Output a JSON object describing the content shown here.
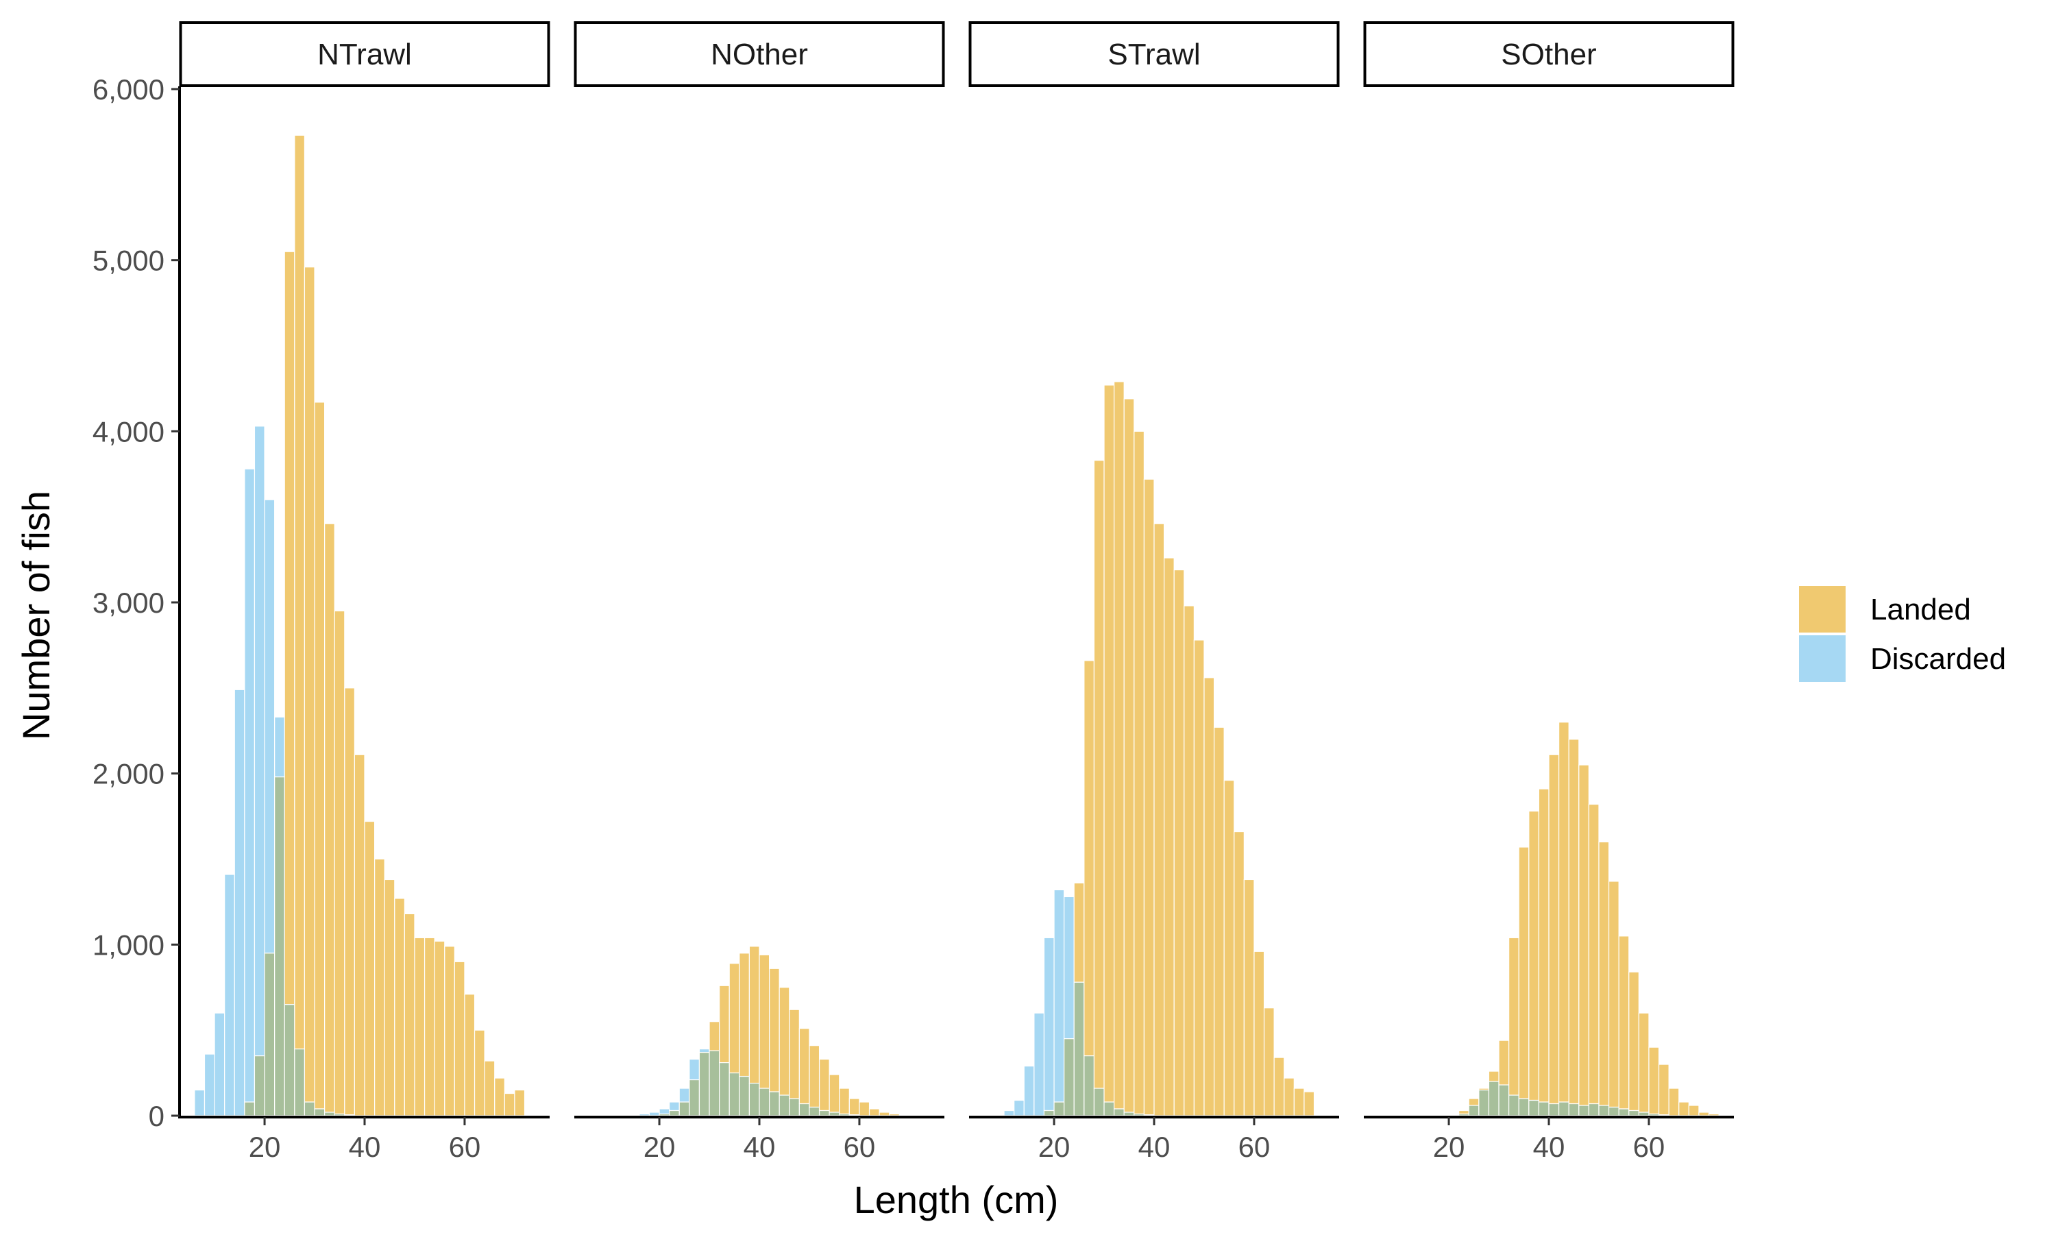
{
  "chart_data": {
    "type": "bar",
    "subtype": "overlapping histogram, faceted",
    "xlabel": "Length (cm)",
    "ylabel": "Number of fish",
    "x_ticks": [
      20,
      40,
      60
    ],
    "y_ticks": [
      0,
      1000,
      2000,
      3000,
      4000,
      5000,
      6000
    ],
    "y_tick_labels": [
      "0",
      "1,000",
      "2,000",
      "3,000",
      "4,000",
      "5,000",
      "6,000"
    ],
    "xlim": [
      3,
      77
    ],
    "ylim": [
      0,
      6000
    ],
    "bin_width": 2,
    "bin_starts": [
      6,
      8,
      10,
      12,
      14,
      16,
      18,
      20,
      22,
      24,
      26,
      28,
      30,
      32,
      34,
      36,
      38,
      40,
      42,
      44,
      46,
      48,
      50,
      52,
      54,
      56,
      58,
      60,
      62,
      64,
      66,
      68,
      70,
      72,
      74
    ],
    "grid": false,
    "legend_position": "right",
    "colors": {
      "Landed": "#F0C970",
      "Discarded": "#A6D8F3",
      "overlap": "#A7BF9B",
      "axis": "#000000",
      "strip_border": "#000000",
      "bar_edge": "#ffffff"
    },
    "legend": [
      {
        "name": "Landed",
        "color": "#F0C970"
      },
      {
        "name": "Discarded",
        "color": "#A6D8F3"
      }
    ],
    "facets": [
      {
        "name": "NTrawl",
        "series": [
          {
            "name": "Landed",
            "values": [
              0,
              0,
              0,
              0,
              0,
              80,
              350,
              950,
              1980,
              5050,
              5730,
              4960,
              4170,
              3460,
              2950,
              2500,
              2110,
              1720,
              1500,
              1380,
              1270,
              1180,
              1040,
              1040,
              1020,
              990,
              900,
              710,
              500,
              320,
              220,
              130,
              150,
              0,
              0
            ]
          },
          {
            "name": "Discarded",
            "values": [
              150,
              360,
              600,
              1410,
              2490,
              3780,
              4030,
              3600,
              2330,
              650,
              390,
              80,
              40,
              20,
              10,
              5,
              0,
              0,
              0,
              0,
              0,
              0,
              0,
              0,
              0,
              0,
              0,
              0,
              0,
              0,
              0,
              0,
              0,
              0,
              0
            ]
          }
        ]
      },
      {
        "name": "NOther",
        "series": [
          {
            "name": "Landed",
            "values": [
              0,
              0,
              0,
              0,
              0,
              0,
              0,
              10,
              30,
              80,
              210,
              370,
              550,
              760,
              890,
              950,
              990,
              940,
              860,
              750,
              620,
              510,
              410,
              330,
              240,
              160,
              100,
              80,
              40,
              20,
              10,
              0,
              0,
              0,
              0
            ]
          },
          {
            "name": "Discarded",
            "values": [
              0,
              0,
              0,
              0,
              0,
              10,
              20,
              40,
              80,
              160,
              330,
              390,
              380,
              310,
              250,
              230,
              190,
              160,
              140,
              120,
              100,
              70,
              50,
              30,
              20,
              10,
              5,
              0,
              0,
              0,
              0,
              0,
              0,
              0,
              0
            ]
          }
        ]
      },
      {
        "name": "STrawl",
        "series": [
          {
            "name": "Landed",
            "values": [
              0,
              0,
              0,
              0,
              0,
              0,
              30,
              80,
              450,
              1360,
              2660,
              3830,
              4270,
              4290,
              4190,
              4000,
              3720,
              3460,
              3260,
              3190,
              2980,
              2780,
              2560,
              2270,
              1960,
              1660,
              1380,
              960,
              630,
              340,
              220,
              160,
              140,
              0,
              0
            ]
          },
          {
            "name": "Discarded",
            "values": [
              0,
              0,
              30,
              90,
              290,
              600,
              1040,
              1320,
              1280,
              780,
              350,
              160,
              80,
              40,
              20,
              10,
              5,
              0,
              0,
              0,
              0,
              0,
              0,
              0,
              0,
              0,
              0,
              0,
              0,
              0,
              0,
              0,
              0,
              0,
              0
            ]
          }
        ]
      },
      {
        "name": "SOther",
        "series": [
          {
            "name": "Landed",
            "values": [
              0,
              0,
              0,
              0,
              0,
              0,
              0,
              0,
              30,
              100,
              160,
              260,
              440,
              1040,
              1570,
              1780,
              1910,
              2110,
              2300,
              2200,
              2050,
              1820,
              1600,
              1370,
              1050,
              840,
              600,
              400,
              300,
              160,
              80,
              60,
              20,
              10,
              0
            ]
          },
          {
            "name": "Discarded",
            "values": [
              0,
              0,
              0,
              0,
              0,
              0,
              0,
              0,
              10,
              60,
              150,
              200,
              180,
              120,
              100,
              90,
              80,
              70,
              80,
              70,
              60,
              70,
              60,
              50,
              40,
              30,
              20,
              10,
              5,
              0,
              0,
              0,
              0,
              0,
              0
            ]
          }
        ]
      }
    ]
  }
}
